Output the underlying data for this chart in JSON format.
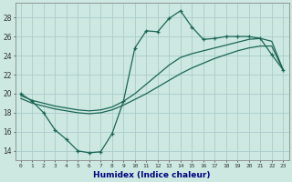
{
  "title": "",
  "xlabel": "Humidex (Indice chaleur)",
  "ylabel": "",
  "background_color": "#cce8e0",
  "grid_color": "#aacccc",
  "line_color": "#1a6655",
  "x_ticks": [
    0,
    1,
    2,
    3,
    4,
    5,
    6,
    7,
    8,
    9,
    10,
    11,
    12,
    13,
    14,
    15,
    16,
    17,
    18,
    19,
    20,
    21,
    22,
    23
  ],
  "y_ticks": [
    14,
    16,
    18,
    20,
    22,
    24,
    26,
    28
  ],
  "xlim": [
    -0.5,
    23.5
  ],
  "ylim": [
    13.0,
    29.5
  ],
  "line1_x": [
    0,
    1,
    2,
    3,
    4,
    5,
    6,
    7,
    8,
    9,
    10,
    11,
    12,
    13,
    14,
    15,
    16,
    17,
    18,
    19,
    20,
    21,
    22,
    23
  ],
  "line1_y": [
    20.0,
    19.2,
    18.0,
    16.2,
    15.2,
    14.0,
    13.8,
    13.9,
    15.8,
    19.2,
    24.8,
    26.6,
    26.5,
    27.9,
    28.7,
    27.0,
    25.7,
    25.8,
    26.0,
    26.0,
    26.0,
    25.8,
    24.1,
    22.5
  ],
  "line2_x": [
    0,
    1,
    2,
    3,
    4,
    5,
    6,
    7,
    8,
    9,
    10,
    11,
    12,
    13,
    14,
    15,
    16,
    17,
    18,
    19,
    20,
    21,
    22,
    23
  ],
  "line2_y": [
    19.5,
    19.0,
    18.7,
    18.4,
    18.2,
    18.0,
    17.9,
    18.0,
    18.3,
    18.8,
    19.4,
    20.0,
    20.7,
    21.4,
    22.1,
    22.7,
    23.2,
    23.7,
    24.1,
    24.5,
    24.8,
    25.0,
    25.0,
    22.5
  ],
  "line3_x": [
    0,
    1,
    2,
    3,
    4,
    5,
    6,
    7,
    8,
    9,
    10,
    11,
    12,
    13,
    14,
    15,
    16,
    17,
    18,
    19,
    20,
    21,
    22,
    23
  ],
  "line3_y": [
    19.8,
    19.3,
    19.0,
    18.7,
    18.5,
    18.3,
    18.2,
    18.3,
    18.6,
    19.2,
    20.0,
    21.0,
    22.0,
    23.0,
    23.8,
    24.2,
    24.5,
    24.8,
    25.1,
    25.4,
    25.7,
    25.8,
    25.5,
    22.5
  ]
}
